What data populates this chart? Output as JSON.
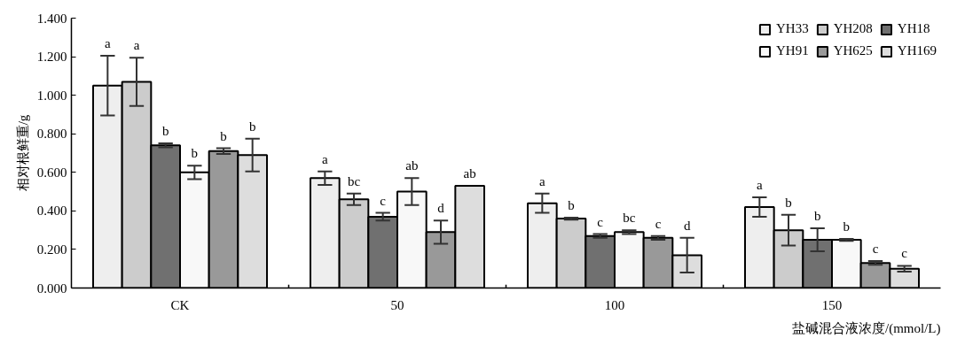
{
  "chart_data": {
    "type": "bar",
    "xlabel": "盐碱混合液浓度/(mmol/L)",
    "ylabel": "相对根鲜重/g",
    "categories": [
      "CK",
      "50",
      "100",
      "150"
    ],
    "ylim": [
      0,
      1.4
    ],
    "yticks": [
      {
        "value": 0,
        "label": "0.000"
      },
      {
        "value": 0.2,
        "label": "0.200"
      },
      {
        "value": 0.4,
        "label": "0.400"
      },
      {
        "value": 0.6,
        "label": "0.600"
      },
      {
        "value": 0.8,
        "label": "0.800"
      },
      {
        "value": 1.0,
        "label": "1.000"
      },
      {
        "value": 1.2,
        "label": "1.200"
      },
      {
        "value": 1.4,
        "label": "1.400"
      }
    ],
    "grid": false,
    "legend": "top right",
    "series": [
      {
        "name": "YH33",
        "color": "#eeeeee",
        "values": [
          1.05,
          0.57,
          0.44,
          0.42
        ],
        "errors": [
          0.155,
          0.035,
          0.05,
          0.05
        ],
        "value_labels": [
          "a",
          "a",
          "a",
          "a"
        ]
      },
      {
        "name": "YH208",
        "color": "#cccccc",
        "values": [
          1.07,
          0.46,
          0.36,
          0.3
        ],
        "errors": [
          0.125,
          0.03,
          0.005,
          0.08
        ],
        "value_labels": [
          "a",
          "bc",
          "b",
          "b"
        ]
      },
      {
        "name": "YH18",
        "color": "#707070",
        "values": [
          0.74,
          0.37,
          0.27,
          0.25
        ],
        "errors": [
          0.01,
          0.02,
          0.01,
          0.06
        ],
        "value_labels": [
          "b",
          "c",
          "c",
          "b"
        ]
      },
      {
        "name": "YH91",
        "color": "#f8f8f8",
        "values": [
          0.6,
          0.5,
          0.29,
          0.25
        ],
        "errors": [
          0.035,
          0.07,
          0.01,
          0.005
        ],
        "value_labels": [
          "b",
          "ab",
          "bc",
          "b"
        ]
      },
      {
        "name": "YH625",
        "color": "#999999",
        "values": [
          0.71,
          0.29,
          0.26,
          0.13
        ],
        "errors": [
          0.015,
          0.06,
          0.01,
          0.01
        ],
        "value_labels": [
          "b",
          "d",
          "c",
          "c"
        ]
      },
      {
        "name": "YH169",
        "color": "#dddddd",
        "values": [
          0.69,
          0.53,
          0.17,
          0.1
        ],
        "errors": [
          0.085,
          null,
          0.09,
          0.015
        ],
        "value_labels": [
          "b",
          "ab",
          "d",
          "c"
        ]
      }
    ]
  }
}
